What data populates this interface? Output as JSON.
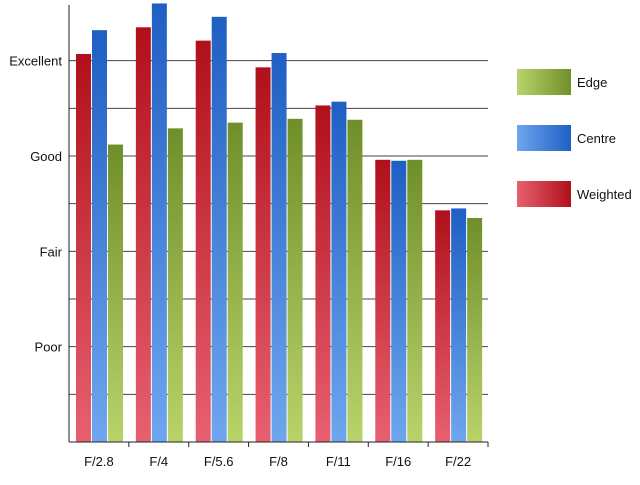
{
  "chart_data": {
    "type": "bar",
    "title": "",
    "xlabel": "",
    "ylabel": "",
    "categories": [
      "F/2.8",
      "F/4",
      "F/5.6",
      "F/8",
      "F/11",
      "F/16",
      "F/22"
    ],
    "y_scale": {
      "min": 0,
      "max": 4.5,
      "ticks": [
        0,
        0.5,
        1,
        1.5,
        2,
        2.5,
        3,
        3.5,
        4
      ],
      "tick_labels": [
        {
          "value": 1,
          "label": "Poor"
        },
        {
          "value": 2,
          "label": "Fair"
        },
        {
          "value": 3,
          "label": "Good"
        },
        {
          "value": 4,
          "label": "Excellent"
        }
      ]
    },
    "grid": "horizontal",
    "legend_position": "right",
    "series": [
      {
        "name": "Weighted",
        "values": [
          4.07,
          4.35,
          4.21,
          3.93,
          3.53,
          2.96,
          2.43
        ],
        "color_top": "#b0101a",
        "color_bottom": "#e86070"
      },
      {
        "name": "Centre",
        "values": [
          4.32,
          4.6,
          4.46,
          4.08,
          3.57,
          2.95,
          2.45
        ],
        "color_top": "#1f5fc4",
        "color_bottom": "#6ea6ee"
      },
      {
        "name": "Edge",
        "values": [
          3.12,
          3.29,
          3.35,
          3.39,
          3.38,
          2.96,
          2.35
        ],
        "color_top": "#6f8f2a",
        "color_bottom": "#b9d36a"
      }
    ],
    "legend": [
      "Edge",
      "Centre",
      "Weighted"
    ]
  }
}
